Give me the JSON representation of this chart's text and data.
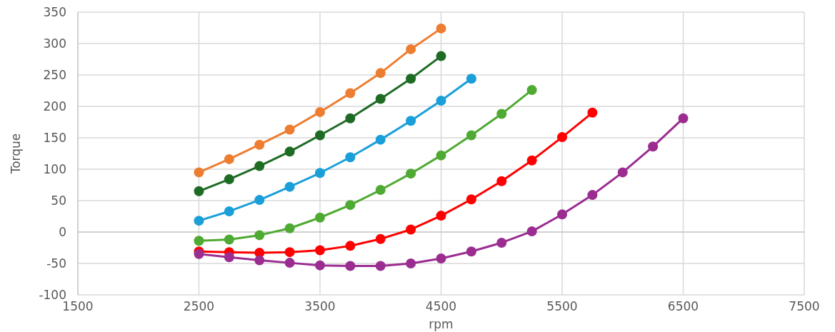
{
  "chart_data": {
    "type": "line",
    "xlabel": "rpm",
    "ylabel": "Torque",
    "xlim": [
      1500,
      7500
    ],
    "xticks": [
      1500,
      2500,
      3500,
      4500,
      5500,
      6500,
      7500
    ],
    "ylim": [
      -100,
      350
    ],
    "yticks": [
      -100,
      -50,
      0,
      50,
      100,
      150,
      200,
      250,
      300,
      350
    ],
    "grid": true,
    "marker": "circle",
    "line_style": "solid",
    "series": [
      {
        "color": "#ed7d31",
        "x": [
          2500,
          2750,
          3000,
          3250,
          3500,
          3750,
          4000,
          4250,
          4500
        ],
        "values": [
          95,
          116,
          139,
          163,
          191,
          221,
          253,
          291,
          324
        ]
      },
      {
        "color": "#1e6b24",
        "x": [
          2500,
          2750,
          3000,
          3250,
          3500,
          3750,
          4000,
          4250,
          4500
        ],
        "values": [
          65,
          84,
          105,
          128,
          154,
          181,
          212,
          244,
          280
        ]
      },
      {
        "color": "#1a9fd8",
        "x": [
          2500,
          2750,
          3000,
          3250,
          3500,
          3750,
          4000,
          4250,
          4500,
          4750
        ],
        "values": [
          18,
          33,
          51,
          72,
          94,
          119,
          147,
          177,
          209,
          244
        ]
      },
      {
        "color": "#4eaa32",
        "x": [
          2500,
          2750,
          3000,
          3250,
          3500,
          3750,
          4000,
          4250,
          4500,
          4750,
          5000,
          5250
        ],
        "values": [
          -14,
          -12,
          -5,
          6,
          23,
          43,
          67,
          93,
          122,
          154,
          188,
          226
        ]
      },
      {
        "color": "#ff0000",
        "x": [
          2500,
          2750,
          3000,
          3250,
          3500,
          3750,
          4000,
          4250,
          4500,
          4750,
          5000,
          5250,
          5500,
          5750
        ],
        "values": [
          -31,
          -32,
          -33,
          -32,
          -29,
          -22,
          -11,
          4,
          26,
          52,
          81,
          114,
          151,
          190
        ]
      },
      {
        "color": "#9b2d91",
        "x": [
          2500,
          2750,
          3000,
          3250,
          3500,
          3750,
          4000,
          4250,
          4500,
          4750,
          5000,
          5250,
          5500,
          5750,
          6000,
          6250,
          6500
        ],
        "values": [
          -35,
          -40,
          -45,
          -49,
          -53,
          -54,
          -54,
          -50,
          -42,
          -31,
          -17,
          1,
          28,
          59,
          95,
          136,
          181
        ]
      }
    ]
  }
}
